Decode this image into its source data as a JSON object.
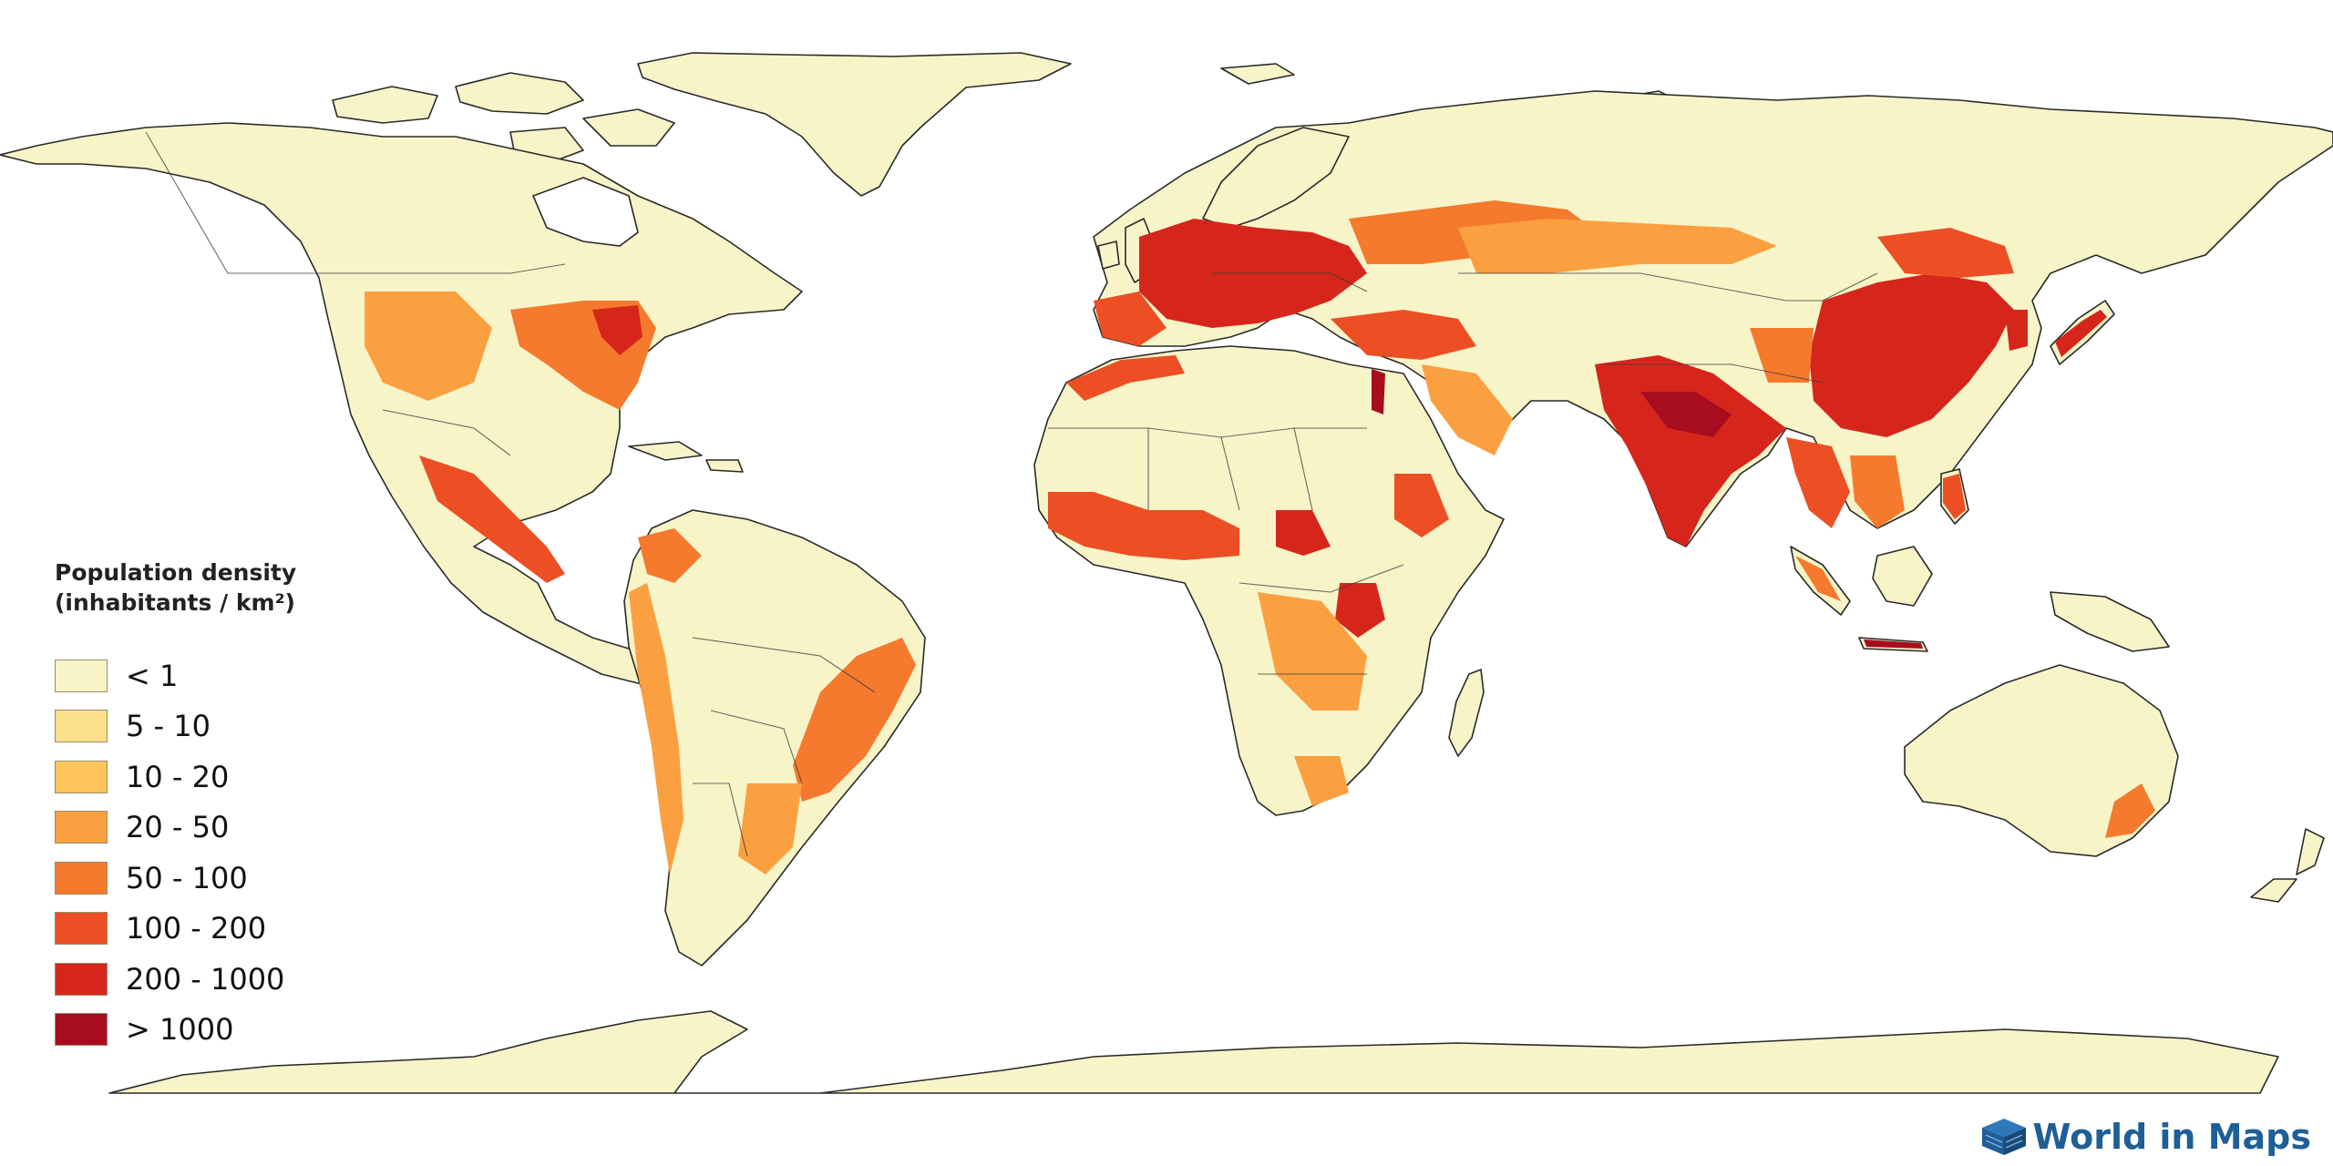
{
  "legend": {
    "title_line1": "Population density",
    "title_line2": "(inhabitants / km²)",
    "items": [
      {
        "label": "< 1",
        "color": "#f7f4c8"
      },
      {
        "label": "5 - 10",
        "color": "#fde08c"
      },
      {
        "label": "10 - 20",
        "color": "#fdc55a"
      },
      {
        "label": "20 - 50",
        "color": "#fba040"
      },
      {
        "label": "50 - 100",
        "color": "#f57a2e"
      },
      {
        "label": "100 - 200",
        "color": "#ec4f23"
      },
      {
        "label": "200 - 1000",
        "color": "#d6261c"
      },
      {
        "label": "> 1000",
        "color": "#a80d1f"
      }
    ]
  },
  "brand": {
    "name": "World in Maps",
    "color": "#1f5f96",
    "icon": "world-in-maps-cube-logo"
  }
}
